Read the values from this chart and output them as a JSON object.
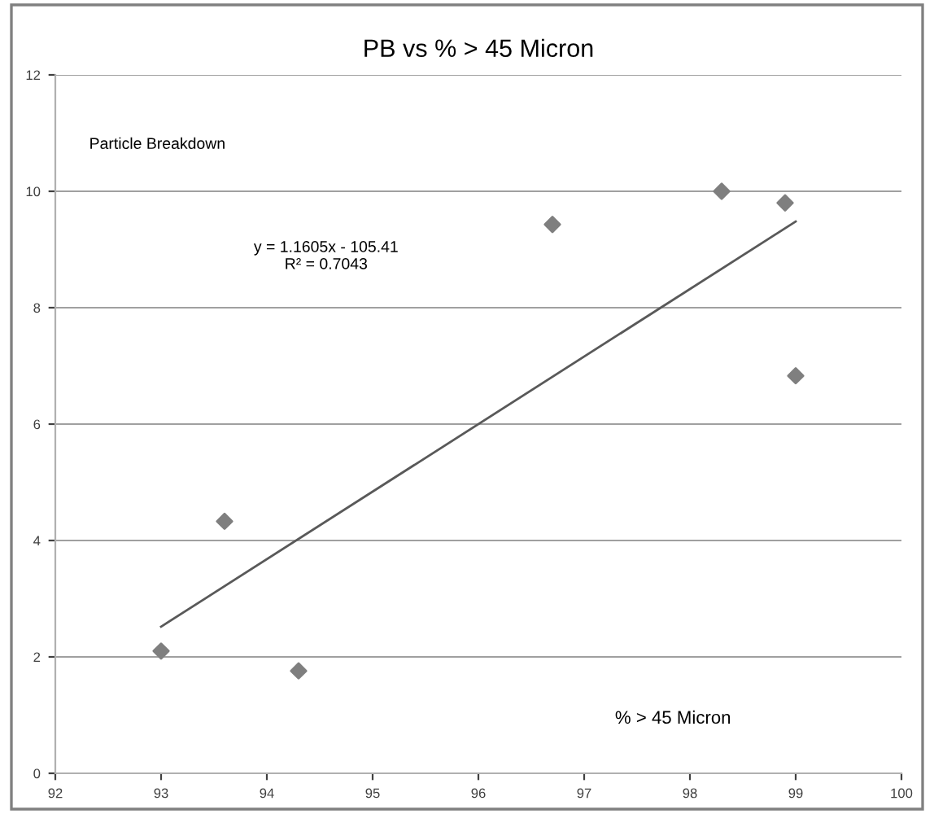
{
  "chart_data": {
    "type": "scatter",
    "title": "PB vs % > 45 Micron",
    "xlabel": "% > 45 Micron",
    "ylabel": "Particle Breakdown",
    "annotations": [
      "y = 1.1605x - 105.41\nR² = 0.7043"
    ],
    "series": [
      {
        "color": "#7f7f7f",
        "marker": "diamond",
        "x": [
          93.0,
          93.6,
          94.3,
          96.7,
          98.3,
          98.9,
          99.0
        ],
        "values": [
          2.1,
          4.33,
          1.76,
          9.43,
          10.0,
          9.8,
          6.83
        ]
      },
      {
        "type": "line",
        "color": "#595959",
        "x": [
          93,
          99
        ],
        "values": [
          2.52,
          9.48
        ]
      }
    ],
    "xlim": [
      92,
      100
    ],
    "xticks": [
      92,
      93,
      94,
      95,
      96,
      97,
      98,
      99,
      100
    ],
    "ylim": [
      0,
      12
    ],
    "yticks": [
      0,
      2,
      4,
      6,
      8,
      10,
      12
    ],
    "grid": "y"
  }
}
